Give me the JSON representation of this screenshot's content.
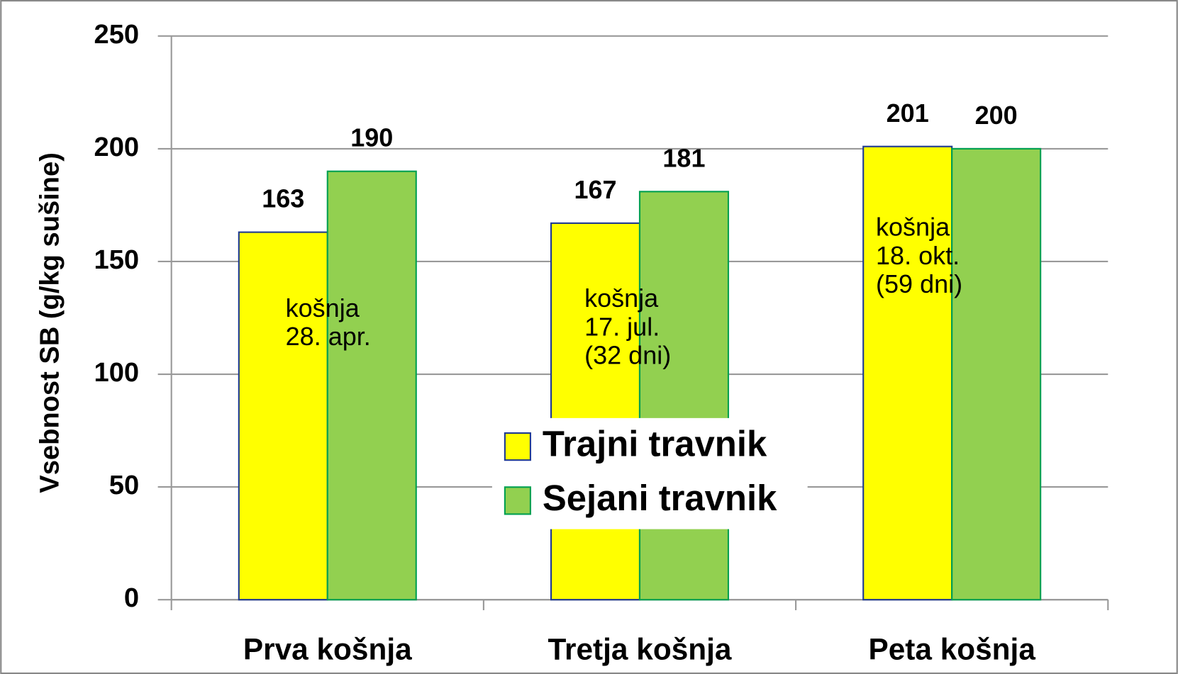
{
  "chart_data": {
    "type": "bar",
    "y_label": "Vsebnost SB (g/kg sušine)",
    "categories": [
      "Prva košnja",
      "Tretja košnja",
      "Peta košnja"
    ],
    "series": [
      {
        "name": "Trajni travnik",
        "color": "#ffff00",
        "values": [
          163,
          167,
          201
        ]
      },
      {
        "name": "Sejani travnik",
        "color": "#92d050",
        "values": [
          190,
          181,
          200
        ]
      }
    ],
    "annotations": [
      [
        "košnja",
        "28. apr."
      ],
      [
        "košnja",
        "17. jul.",
        "(32 dni)"
      ],
      [
        "košnja",
        "18. okt.",
        "(59 dni)"
      ]
    ],
    "ylim": [
      0,
      250
    ],
    "yticks": [
      0,
      50,
      100,
      150,
      200,
      250
    ],
    "grid": true
  }
}
